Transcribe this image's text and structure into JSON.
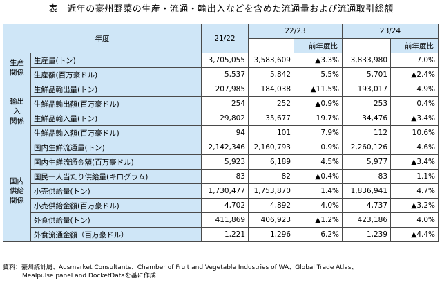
{
  "title": "表　近年の豪州野菜の生産・流通・輸出入などを含めた流通量および流通取引総額",
  "header": {
    "year_label": "年度",
    "years": [
      "21/22",
      "22/23",
      "23/24"
    ],
    "yoy_label": "前年度比"
  },
  "categories": {
    "production": "生産\n関係",
    "trade": "輸出入\n関係",
    "supply": "国内\n供給\n関係"
  },
  "rows": [
    {
      "label": "生産量(トン)",
      "v2122": "3,705,055",
      "v2223": "3,583,609",
      "yoy2223": "▲3.3%",
      "v2324": "3,833,980",
      "yoy2324": "7.0%"
    },
    {
      "label": "生産額(百万豪ドル)",
      "v2122": "5,537",
      "v2223": "5,842",
      "yoy2223": "5.5%",
      "v2324": "5,701",
      "yoy2324": "▲2.4%"
    },
    {
      "label": "生鮮品輸出量(トン)",
      "v2122": "207,985",
      "v2223": "184,038",
      "yoy2223": "▲11.5%",
      "v2324": "193,017",
      "yoy2324": "4.9%"
    },
    {
      "label": "生鮮品輸出額(百万豪ドル)",
      "v2122": "254",
      "v2223": "252",
      "yoy2223": "▲0.9%",
      "v2324": "253",
      "yoy2324": "0.4%"
    },
    {
      "label": "生鮮品輸入量(トン)",
      "v2122": "29,802",
      "v2223": "35,677",
      "yoy2223": "19.7%",
      "v2324": "34,476",
      "yoy2324": "▲3.4%"
    },
    {
      "label": "生鮮品輸入額(百万豪ドル)",
      "v2122": "94",
      "v2223": "101",
      "yoy2223": "7.9%",
      "v2324": "112",
      "yoy2324": "10.6%"
    },
    {
      "label": "国内生鮮流通量(トン)",
      "v2122": "2,142,346",
      "v2223": "2,160,793",
      "yoy2223": "0.9%",
      "v2324": "2,260,126",
      "yoy2324": "4.6%"
    },
    {
      "label": "国内生鮮流通金額(百万豪ドル)",
      "v2122": "5,923",
      "v2223": "6,189",
      "yoy2223": "4.5%",
      "v2324": "5,977",
      "yoy2324": "▲3.4%"
    },
    {
      "label": "国民一人当たり供給量(キログラム)",
      "v2122": "83",
      "v2223": "82",
      "yoy2223": "▲0.4%",
      "v2324": "83",
      "yoy2324": "1.1%"
    },
    {
      "label": "小売供給量(トン)",
      "v2122": "1,730,477",
      "v2223": "1,753,870",
      "yoy2223": "1.4%",
      "v2324": "1,836,941",
      "yoy2324": "4.7%"
    },
    {
      "label": "小売供給金額(百万豪ドル)",
      "v2122": "4,702",
      "v2223": "4,892",
      "yoy2223": "4.0%",
      "v2324": "4,737",
      "yoy2324": "▲3.2%"
    },
    {
      "label": "外食供給量(トン)",
      "v2122": "411,869",
      "v2223": "406,923",
      "yoy2223": "▲1.2%",
      "v2324": "423,186",
      "yoy2324": "4.0%"
    },
    {
      "label": "外食流通金額（百万豪ドル）",
      "v2122": "1,221",
      "v2223": "1,296",
      "yoy2223": "6.2%",
      "v2324": "1,239",
      "yoy2324": "▲4.4%"
    }
  ],
  "source": {
    "line1": "資料：豪州統計局、Ausmarket Consultants、Chamber of Fruit and Vegetable Industries of WA、Global Trade Atlas、",
    "line2": "Mealpulse panel and DocketDataを基に作成"
  }
}
